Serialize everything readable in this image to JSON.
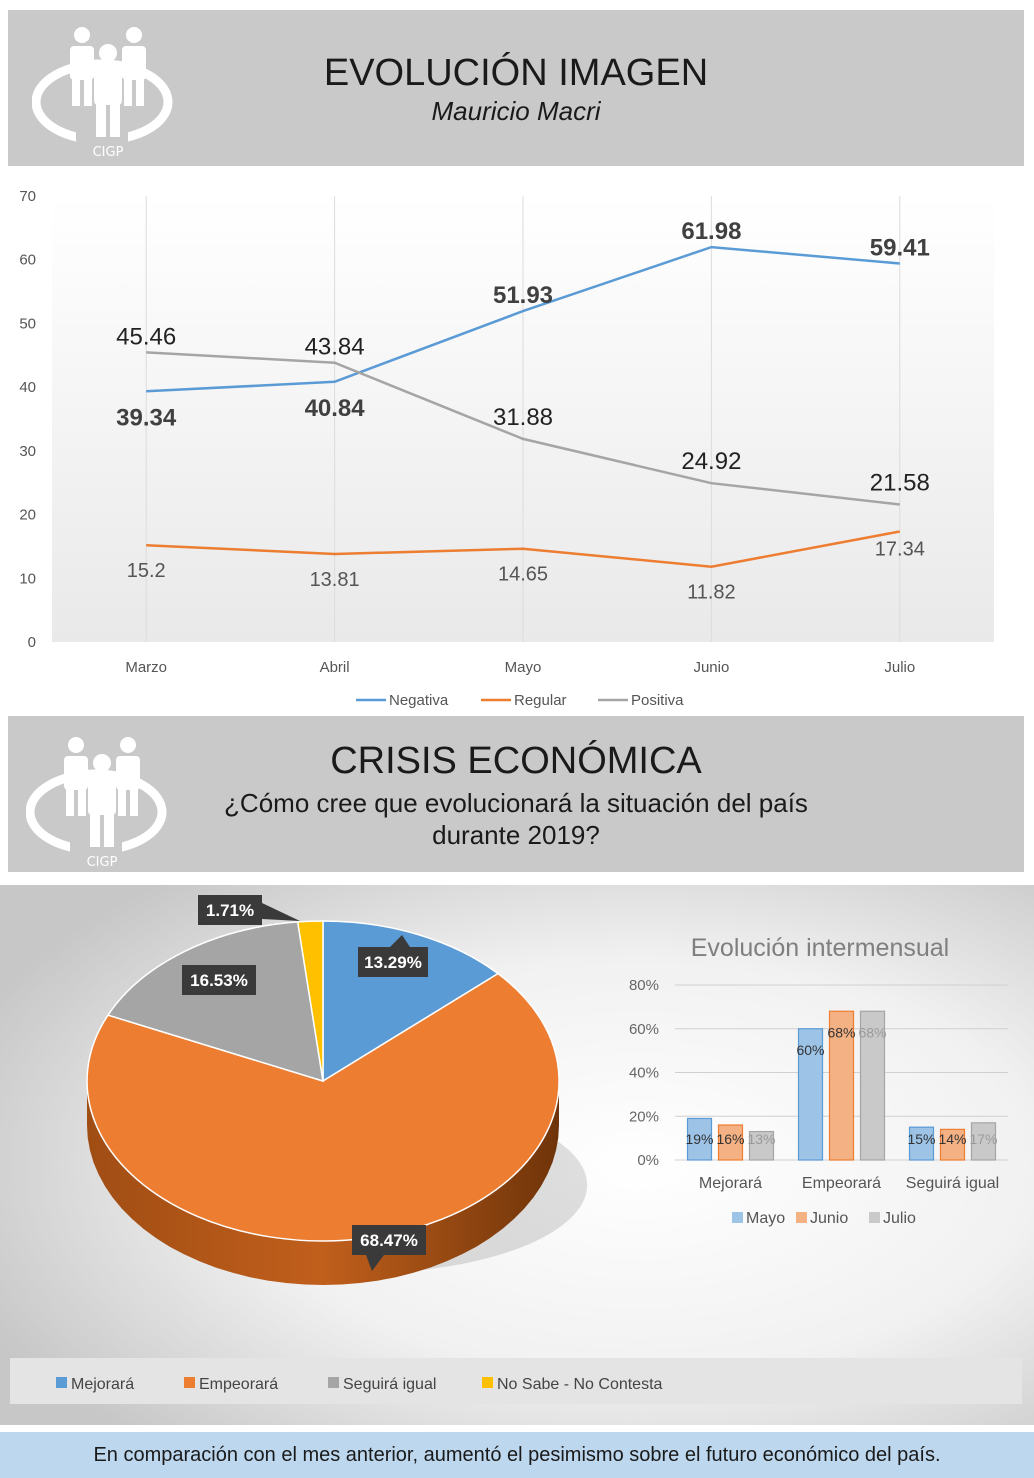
{
  "header1": {
    "title": "EVOLUCIÓN IMAGEN",
    "subtitle": "Mauricio Macri",
    "logo_text": "CIGP"
  },
  "header2": {
    "title": "CRISIS ECONÓMICA",
    "subtitle_line1": "¿Cómo cree que evolucionará la situación del país",
    "subtitle_line2": "durante 2019?",
    "logo_text": "CIGP"
  },
  "footer": {
    "text": "En comparación con el mes anterior, aumentó el pesimismo sobre el futuro económico del país."
  },
  "chart_data": [
    {
      "type": "line",
      "categories": [
        "Marzo",
        "Abril",
        "Mayo",
        "Junio",
        "Julio"
      ],
      "ylim": [
        0,
        70
      ],
      "yticks": [
        0,
        10,
        20,
        30,
        40,
        50,
        60,
        70
      ],
      "legend_position": "bottom",
      "grid": "vertical",
      "series": [
        {
          "name": "Negativa",
          "color": "#5b9bd5",
          "values": [
            39.34,
            40.84,
            51.93,
            61.98,
            59.41
          ]
        },
        {
          "name": "Regular",
          "color": "#ed7d31",
          "values": [
            15.2,
            13.81,
            14.65,
            11.82,
            17.34
          ]
        },
        {
          "name": "Positiva",
          "color": "#a5a5a5",
          "values": [
            45.46,
            43.84,
            31.88,
            24.92,
            21.58
          ]
        }
      ]
    },
    {
      "type": "pie",
      "style": "3d",
      "legend_position": "bottom",
      "slices": [
        {
          "name": "Mejorará",
          "label": "13.29%",
          "value": 13.29,
          "color": "#5b9bd5"
        },
        {
          "name": "Empeorará",
          "label": "68.47%",
          "value": 68.47,
          "color": "#ed7d31"
        },
        {
          "name": "Seguirá igual",
          "label": "16.53%",
          "value": 16.53,
          "color": "#a5a5a5"
        },
        {
          "name": "No Sabe - No Contesta",
          "label": "1.71%",
          "value": 1.71,
          "color": "#ffc000"
        }
      ]
    },
    {
      "type": "bar",
      "title": "Evolución intermensual",
      "categories": [
        "Mejorará",
        "Empeorará",
        "Seguirá igual"
      ],
      "ylim": [
        0,
        80
      ],
      "yticks": [
        "0%",
        "20%",
        "40%",
        "60%",
        "80%"
      ],
      "legend_position": "bottom",
      "series": [
        {
          "name": "Mayo",
          "color": "#9dc3e6",
          "values": [
            19,
            60,
            15
          ],
          "labels": [
            "19%",
            "60%",
            "15%"
          ]
        },
        {
          "name": "Junio",
          "color": "#f4b183",
          "values": [
            16,
            68,
            14
          ],
          "labels": [
            "16%",
            "68%",
            "14%"
          ]
        },
        {
          "name": "Julio",
          "color": "#c9c9c9",
          "values": [
            13,
            68,
            17
          ],
          "labels": [
            "13%",
            "68%",
            "17%"
          ]
        }
      ]
    }
  ]
}
